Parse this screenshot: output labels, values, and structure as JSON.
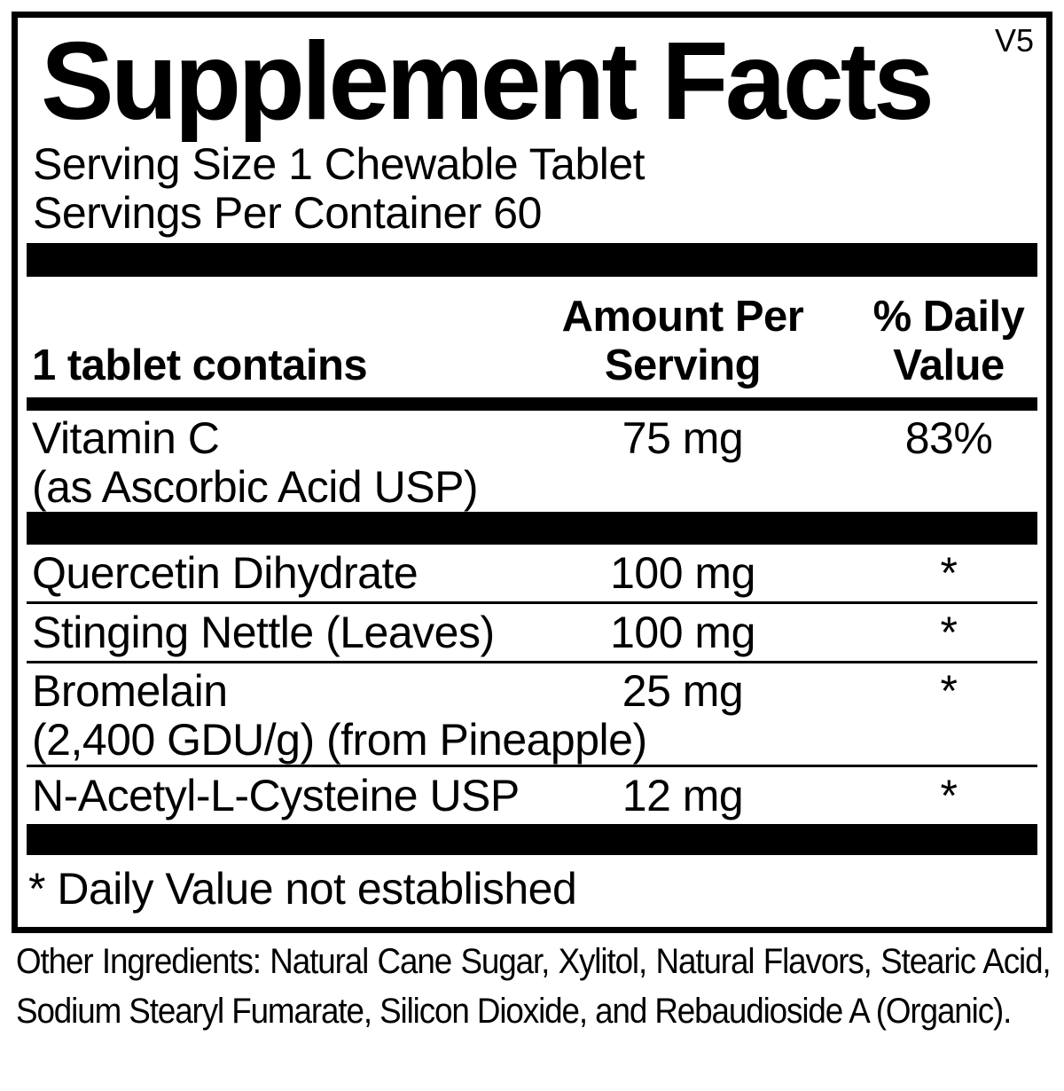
{
  "panel": {
    "version": "V5",
    "title": "Supplement Facts",
    "serving_size": "Serving Size 1 Chewable Tablet",
    "servings_per_container": "Servings Per Container 60",
    "columns": {
      "left_header": "1 tablet contains",
      "amount_header": "Amount Per Serving",
      "daily_value_header": "% Daily Value"
    },
    "rows": [
      {
        "name": "Vitamin C",
        "name_line2": "(as Ascorbic Acid USP)",
        "amount": "75 mg",
        "daily_value": "83%"
      },
      {
        "name": "Quercetin Dihydrate",
        "amount": "100 mg",
        "daily_value": "*"
      },
      {
        "name": "Stinging Nettle (Leaves)",
        "amount": "100 mg",
        "daily_value": "*"
      },
      {
        "name": "Bromelain",
        "name_line2": "(2,400 GDU/g) (from Pineapple)",
        "amount": "25 mg",
        "daily_value": "*"
      },
      {
        "name": "N-Acetyl-L-Cysteine USP",
        "amount": "12 mg",
        "daily_value": "*"
      }
    ],
    "footnote": "* Daily Value not established"
  },
  "other_ingredients": "Other Ingredients: Natural Cane Sugar, Xylitol, Natural Flavors, Stearic Acid, Sodium Stearyl Fumarate, Silicon Dioxide, and Rebaudioside A (Organic).",
  "colors": {
    "ink": "#000000",
    "background": "#ffffff"
  }
}
